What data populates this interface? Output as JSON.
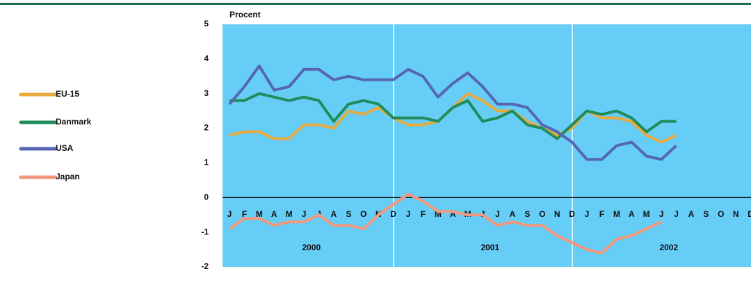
{
  "chart_data": {
    "type": "line",
    "ylabel": "Procent",
    "categories": [
      "J",
      "F",
      "M",
      "A",
      "M",
      "J",
      "J",
      "A",
      "S",
      "O",
      "N",
      "D",
      "J",
      "F",
      "M",
      "A",
      "M",
      "J",
      "J",
      "A",
      "S",
      "O",
      "N",
      "D",
      "J",
      "F",
      "M",
      "A",
      "M",
      "J",
      "J",
      "A",
      "S",
      "O",
      "N",
      "D"
    ],
    "years": [
      "2000",
      "2001",
      "2002"
    ],
    "ylim": [
      -2,
      5
    ],
    "yticks": [
      -2,
      -1,
      0,
      1,
      2,
      3,
      4,
      5
    ],
    "background": "#66cdf6",
    "series": [
      {
        "name": "EU-15",
        "color": "#e9aa3c",
        "values": [
          1.8,
          1.9,
          1.9,
          1.7,
          1.7,
          2.1,
          2.1,
          2.0,
          2.5,
          2.4,
          2.6,
          2.3,
          2.1,
          2.1,
          2.2,
          2.6,
          3.0,
          2.8,
          2.5,
          2.5,
          2.2,
          2.0,
          1.8,
          2.0,
          2.5,
          2.3,
          2.3,
          2.2,
          1.8,
          1.6,
          1.8,
          null,
          null,
          null,
          null,
          null
        ]
      },
      {
        "name": "Danmark",
        "color": "#1f8c5b",
        "values": [
          2.8,
          2.8,
          3.0,
          2.9,
          2.8,
          2.9,
          2.8,
          2.2,
          2.7,
          2.8,
          2.7,
          2.3,
          2.3,
          2.3,
          2.2,
          2.6,
          2.8,
          2.2,
          2.3,
          2.5,
          2.1,
          2.0,
          1.7,
          2.1,
          2.5,
          2.4,
          2.5,
          2.3,
          1.9,
          2.2,
          2.2,
          null,
          null,
          null,
          null,
          null
        ]
      },
      {
        "name": "USA",
        "color": "#5566b2",
        "values": [
          2.7,
          3.2,
          3.8,
          3.1,
          3.2,
          3.7,
          3.7,
          3.4,
          3.5,
          3.4,
          3.4,
          3.4,
          3.7,
          3.5,
          2.9,
          3.3,
          3.6,
          3.2,
          2.7,
          2.7,
          2.6,
          2.1,
          1.9,
          1.6,
          1.1,
          1.1,
          1.5,
          1.6,
          1.2,
          1.1,
          1.5,
          null,
          null,
          null,
          null,
          null
        ]
      },
      {
        "name": "Japan",
        "color": "#f5977b",
        "values": [
          -0.9,
          -0.6,
          -0.6,
          -0.8,
          -0.7,
          -0.7,
          -0.5,
          -0.8,
          -0.8,
          -0.9,
          -0.5,
          -0.2,
          0.1,
          -0.1,
          -0.4,
          -0.4,
          -0.5,
          -0.5,
          -0.8,
          -0.7,
          -0.8,
          -0.8,
          -1.1,
          -1.3,
          -1.5,
          -1.6,
          -1.2,
          -1.1,
          -0.9,
          -0.7,
          null,
          null,
          null,
          null,
          null,
          null
        ]
      }
    ]
  }
}
